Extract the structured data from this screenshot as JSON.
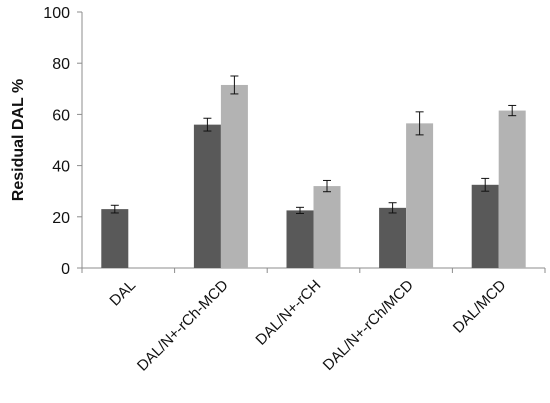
{
  "chart_data": {
    "type": "bar",
    "title": "",
    "xlabel": "",
    "ylabel": "Residual DAL %",
    "ylim": [
      0,
      100
    ],
    "yticks": [
      0,
      20,
      40,
      60,
      80,
      100
    ],
    "grid": false,
    "legend": "none",
    "categories": [
      "DAL",
      "DAL/N+-rCh-MCD",
      "DAL/N+-rCH",
      "DAL/N+-rCh/MCD",
      "DAL/MCD"
    ],
    "series": [
      {
        "color": "#595959",
        "values": [
          23,
          56,
          22.5,
          23.5,
          32.5
        ],
        "errors": [
          1.5,
          2.5,
          1.2,
          2.0,
          2.5
        ]
      },
      {
        "color": "#b3b3b3",
        "values": [
          null,
          71.5,
          32,
          56.5,
          61.5
        ],
        "errors": [
          null,
          3.5,
          2.2,
          4.5,
          2.0
        ]
      }
    ]
  }
}
